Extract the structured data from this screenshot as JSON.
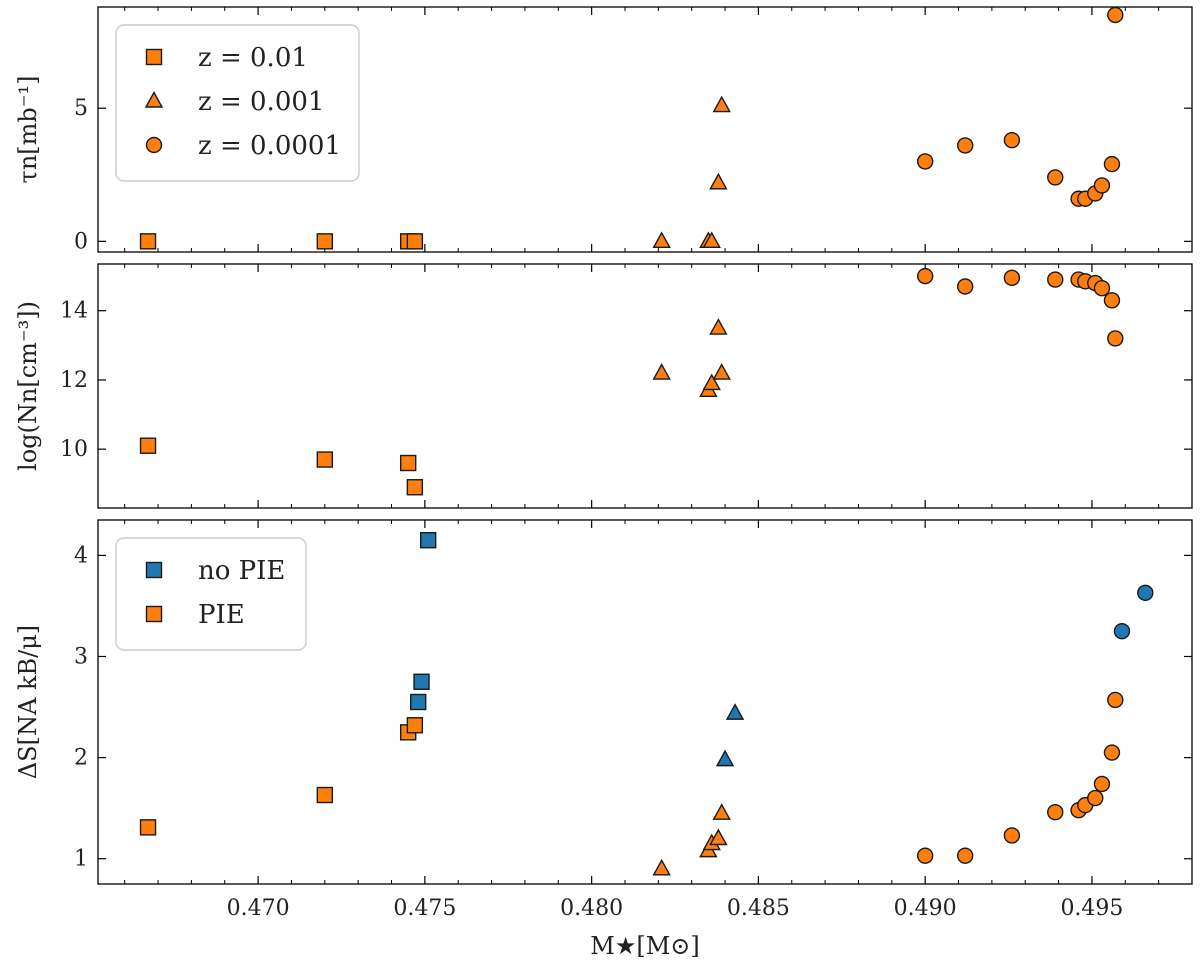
{
  "colors": {
    "orange": "#ff7f0e",
    "blue": "#1f77b4",
    "edge": "#1a1a1a"
  },
  "chart_data": {
    "type": "scatter",
    "shared_x": {
      "label": "M★[M⊙]",
      "range": [
        0.4652,
        0.498
      ],
      "ticks": [
        0.47,
        0.475,
        0.48,
        0.485,
        0.49,
        0.495
      ],
      "tick_labels": [
        "0.470",
        "0.475",
        "0.480",
        "0.485",
        "0.490",
        "0.495"
      ]
    },
    "panels": [
      {
        "ylabel": "τn[mb⁻¹]",
        "ylim": [
          -0.4,
          8.8
        ],
        "yticks": [
          0,
          5
        ],
        "ytick_labels": [
          "0",
          "5"
        ],
        "legend": {
          "position": "top-left",
          "entries": [
            {
              "label": "z = 0.01",
              "marker": "square",
              "color": "orange"
            },
            {
              "label": "z = 0.001",
              "marker": "triangle",
              "color": "orange"
            },
            {
              "label": "z = 0.0001",
              "marker": "circle",
              "color": "orange"
            }
          ]
        },
        "series": [
          {
            "name": "z = 0.01",
            "marker": "square",
            "color": "orange",
            "x": [
              0.4667,
              0.472,
              0.4745,
              0.4747
            ],
            "y": [
              0.0,
              0.0,
              0.0,
              0.0
            ]
          },
          {
            "name": "z = 0.001",
            "marker": "triangle",
            "color": "orange",
            "x": [
              0.4821,
              0.4835,
              0.4836,
              0.4838,
              0.4839
            ],
            "y": [
              0.0,
              0.0,
              0.0,
              2.2,
              5.1
            ]
          },
          {
            "name": "z = 0.0001",
            "marker": "circle",
            "color": "orange",
            "x": [
              0.49,
              0.4912,
              0.4926,
              0.4939,
              0.4946,
              0.4948,
              0.4951,
              0.4953,
              0.4956,
              0.4957
            ],
            "y": [
              3.0,
              3.6,
              3.8,
              2.4,
              1.6,
              1.6,
              1.8,
              2.1,
              2.9,
              8.5
            ]
          }
        ]
      },
      {
        "ylabel": "log(Nn[cm⁻³])",
        "ylim": [
          8.3,
          15.35
        ],
        "yticks": [
          10,
          12,
          14
        ],
        "ytick_labels": [
          "10",
          "12",
          "14"
        ],
        "series": [
          {
            "name": "z = 0.01",
            "marker": "square",
            "color": "orange",
            "x": [
              0.4667,
              0.472,
              0.4745,
              0.4747
            ],
            "y": [
              10.1,
              9.7,
              9.6,
              8.9
            ]
          },
          {
            "name": "z = 0.001",
            "marker": "triangle",
            "color": "orange",
            "x": [
              0.4821,
              0.4835,
              0.4836,
              0.4838,
              0.4839
            ],
            "y": [
              12.2,
              11.7,
              11.9,
              13.5,
              12.2
            ]
          },
          {
            "name": "z = 0.0001",
            "marker": "circle",
            "color": "orange",
            "x": [
              0.49,
              0.4912,
              0.4926,
              0.4939,
              0.4946,
              0.4948,
              0.4951,
              0.4953,
              0.4956,
              0.4957
            ],
            "y": [
              15.0,
              14.7,
              14.95,
              14.9,
              14.9,
              14.85,
              14.8,
              14.65,
              14.3,
              13.2
            ]
          }
        ]
      },
      {
        "ylabel": "ΔS[NA kB/μ]",
        "ylim": [
          0.75,
          4.35
        ],
        "yticks": [
          1,
          2,
          3,
          4
        ],
        "ytick_labels": [
          "1",
          "2",
          "3",
          "4"
        ],
        "legend": {
          "position": "top-left",
          "entries": [
            {
              "label": "no PIE",
              "marker": "square",
              "color": "blue"
            },
            {
              "label": "PIE",
              "marker": "square",
              "color": "orange"
            }
          ]
        },
        "series": [
          {
            "name": "no PIE, z = 0.01",
            "marker": "square",
            "color": "blue",
            "x": [
              0.4748,
              0.4749,
              0.4751
            ],
            "y": [
              2.55,
              2.75,
              4.15
            ]
          },
          {
            "name": "PIE, z = 0.01",
            "marker": "square",
            "color": "orange",
            "x": [
              0.4667,
              0.472,
              0.4745,
              0.4747
            ],
            "y": [
              1.31,
              1.63,
              2.25,
              2.32
            ]
          },
          {
            "name": "no PIE, z = 0.001",
            "marker": "triangle",
            "color": "blue",
            "x": [
              0.484,
              0.4843
            ],
            "y": [
              1.98,
              2.44
            ]
          },
          {
            "name": "PIE, z = 0.001",
            "marker": "triangle",
            "color": "orange",
            "x": [
              0.4821,
              0.4835,
              0.4836,
              0.4838,
              0.4839
            ],
            "y": [
              0.9,
              1.08,
              1.15,
              1.2,
              1.45
            ]
          },
          {
            "name": "no PIE, z = 0.0001",
            "marker": "circle",
            "color": "blue",
            "x": [
              0.4959,
              0.4966
            ],
            "y": [
              3.25,
              3.63
            ]
          },
          {
            "name": "PIE, z = 0.0001",
            "marker": "circle",
            "color": "orange",
            "x": [
              0.49,
              0.4912,
              0.4926,
              0.4939,
              0.4946,
              0.4948,
              0.4951,
              0.4953,
              0.4956,
              0.4957
            ],
            "y": [
              1.03,
              1.03,
              1.23,
              1.46,
              1.48,
              1.53,
              1.6,
              1.74,
              2.05,
              2.57
            ]
          }
        ]
      }
    ]
  }
}
